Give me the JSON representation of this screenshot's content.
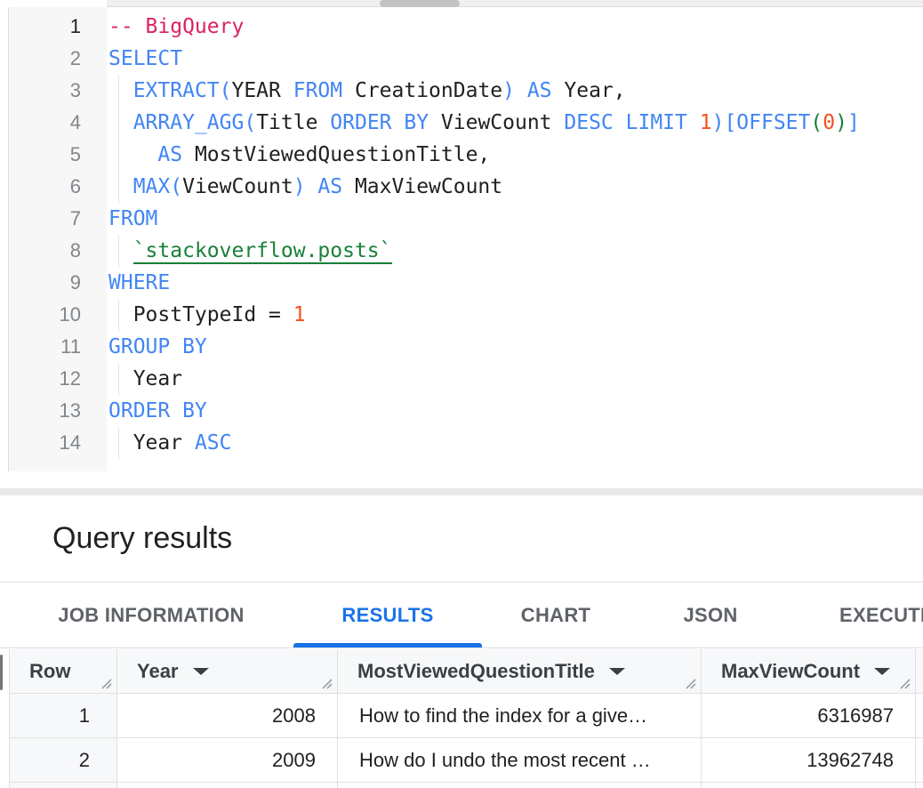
{
  "editor": {
    "lines": [
      {
        "num": "1",
        "active": true,
        "guide": false,
        "tokens": [
          [
            "c",
            "-- BigQuery"
          ]
        ]
      },
      {
        "num": "2",
        "guide": false,
        "tokens": [
          [
            "k",
            "SELECT"
          ]
        ]
      },
      {
        "num": "3",
        "guide": true,
        "tokens": [
          [
            "p",
            "  "
          ],
          [
            "k",
            "EXTRACT("
          ],
          [
            "p",
            "YEAR "
          ],
          [
            "k",
            "FROM"
          ],
          [
            "p",
            " CreationDate"
          ],
          [
            "k",
            ") AS"
          ],
          [
            "p",
            " Year,"
          ]
        ]
      },
      {
        "num": "4",
        "guide": true,
        "tokens": [
          [
            "p",
            "  "
          ],
          [
            "k",
            "ARRAY_AGG("
          ],
          [
            "p",
            "Title "
          ],
          [
            "k",
            "ORDER BY"
          ],
          [
            "p",
            " ViewCount "
          ],
          [
            "k",
            "DESC LIMIT"
          ],
          [
            "p",
            " "
          ],
          [
            "n",
            "1"
          ],
          [
            "k",
            ")[OFFSET"
          ],
          [
            "g",
            "("
          ],
          [
            "n",
            "0"
          ],
          [
            "g",
            ")"
          ],
          [
            "k",
            "]"
          ]
        ]
      },
      {
        "num": "5",
        "guide": true,
        "tokens": [
          [
            "p",
            "    "
          ],
          [
            "k",
            "AS"
          ],
          [
            "p",
            " MostViewedQuestionTitle,"
          ]
        ]
      },
      {
        "num": "6",
        "guide": true,
        "tokens": [
          [
            "p",
            "  "
          ],
          [
            "k",
            "MAX("
          ],
          [
            "p",
            "ViewCount"
          ],
          [
            "k",
            ") AS"
          ],
          [
            "p",
            " MaxViewCount"
          ]
        ]
      },
      {
        "num": "7",
        "guide": false,
        "tokens": [
          [
            "k",
            "FROM"
          ]
        ]
      },
      {
        "num": "8",
        "guide": true,
        "tokens": [
          [
            "p",
            "  "
          ],
          [
            "t",
            "`stackoverflow.posts`"
          ]
        ]
      },
      {
        "num": "9",
        "guide": false,
        "tokens": [
          [
            "k",
            "WHERE"
          ]
        ]
      },
      {
        "num": "10",
        "guide": true,
        "tokens": [
          [
            "p",
            "  PostTypeId = "
          ],
          [
            "n",
            "1"
          ]
        ]
      },
      {
        "num": "11",
        "guide": false,
        "tokens": [
          [
            "k",
            "GROUP BY"
          ]
        ]
      },
      {
        "num": "12",
        "guide": true,
        "tokens": [
          [
            "p",
            "  Year"
          ]
        ]
      },
      {
        "num": "13",
        "guide": false,
        "tokens": [
          [
            "k",
            "ORDER BY"
          ]
        ]
      },
      {
        "num": "14",
        "guide": true,
        "tokens": [
          [
            "p",
            "  Year "
          ],
          [
            "k",
            "ASC"
          ]
        ]
      }
    ]
  },
  "results": {
    "title": "Query results"
  },
  "tabs": [
    {
      "label": "JOB INFORMATION",
      "active": false
    },
    {
      "label": "RESULTS",
      "active": true
    },
    {
      "label": "CHART",
      "active": false
    },
    {
      "label": "JSON",
      "active": false
    },
    {
      "label": "EXECUTION DETAILS",
      "active": false
    }
  ],
  "table": {
    "columns": [
      {
        "label": "Row",
        "sortable": false
      },
      {
        "label": "Year",
        "sortable": true
      },
      {
        "label": "MostViewedQuestionTitle",
        "sortable": true
      },
      {
        "label": "MaxViewCount",
        "sortable": true
      },
      {
        "label": "",
        "sortable": false
      }
    ],
    "rows": [
      [
        "1",
        "2008",
        "How to find the index for a give…",
        "6316987"
      ],
      [
        "2",
        "2009",
        "How do I undo the most recent …",
        "13962748"
      ],
      [
        "",
        "",
        "",
        ""
      ]
    ]
  },
  "colors": {
    "keyword": "#4285f4",
    "plain": "#202124",
    "comment": "#dd2264",
    "number": "#f4511e",
    "green": "#188038",
    "accent_active_tab": "#1a73e8",
    "tab_inactive": "#5f6368"
  }
}
